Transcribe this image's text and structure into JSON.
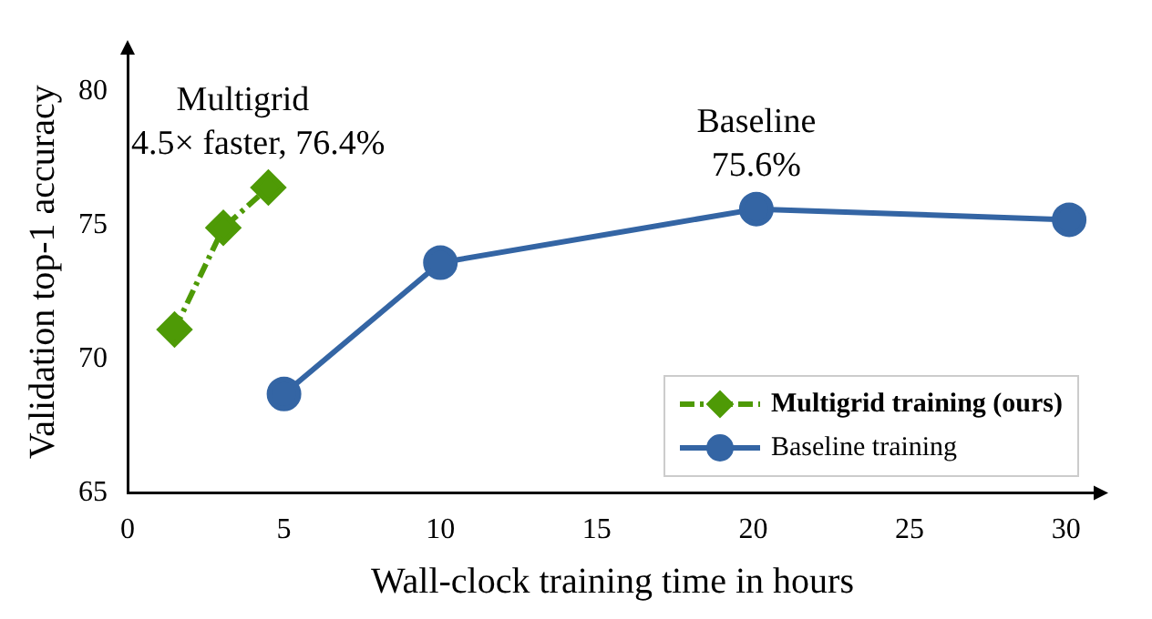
{
  "chart_data": {
    "type": "line",
    "xlabel": "Wall-clock training time in hours",
    "ylabel": "Validation top-1 accuracy",
    "xlim": [
      0,
      31
    ],
    "xticks": [
      0,
      5,
      10,
      15,
      20,
      25,
      30
    ],
    "ylim": [
      65,
      81.5
    ],
    "yticks": [
      65,
      70,
      75,
      80
    ],
    "grid": false,
    "legend": "bottom right",
    "series": [
      {
        "name": "Multigrid training (ours)",
        "color": "#4e9a06",
        "x": [
          1.5,
          3.06,
          4.5
        ],
        "values": [
          71.1,
          74.9,
          76.4
        ],
        "marker": "diamond",
        "line_style": "dashed"
      },
      {
        "name": "Baseline training",
        "color": "#3465a4",
        "x": [
          5.0,
          10.0,
          20.1,
          30.1
        ],
        "values": [
          68.7,
          73.6,
          75.6,
          75.2
        ],
        "marker": "circle",
        "line_style": "solid"
      }
    ],
    "annotations": [
      {
        "text": "Multigrid\n4.5× faster, 76.4%",
        "x": 4.5,
        "y": 76.4
      },
      {
        "text": "Baseline\n75.6%",
        "x": 20.1,
        "y": 75.6
      }
    ]
  }
}
